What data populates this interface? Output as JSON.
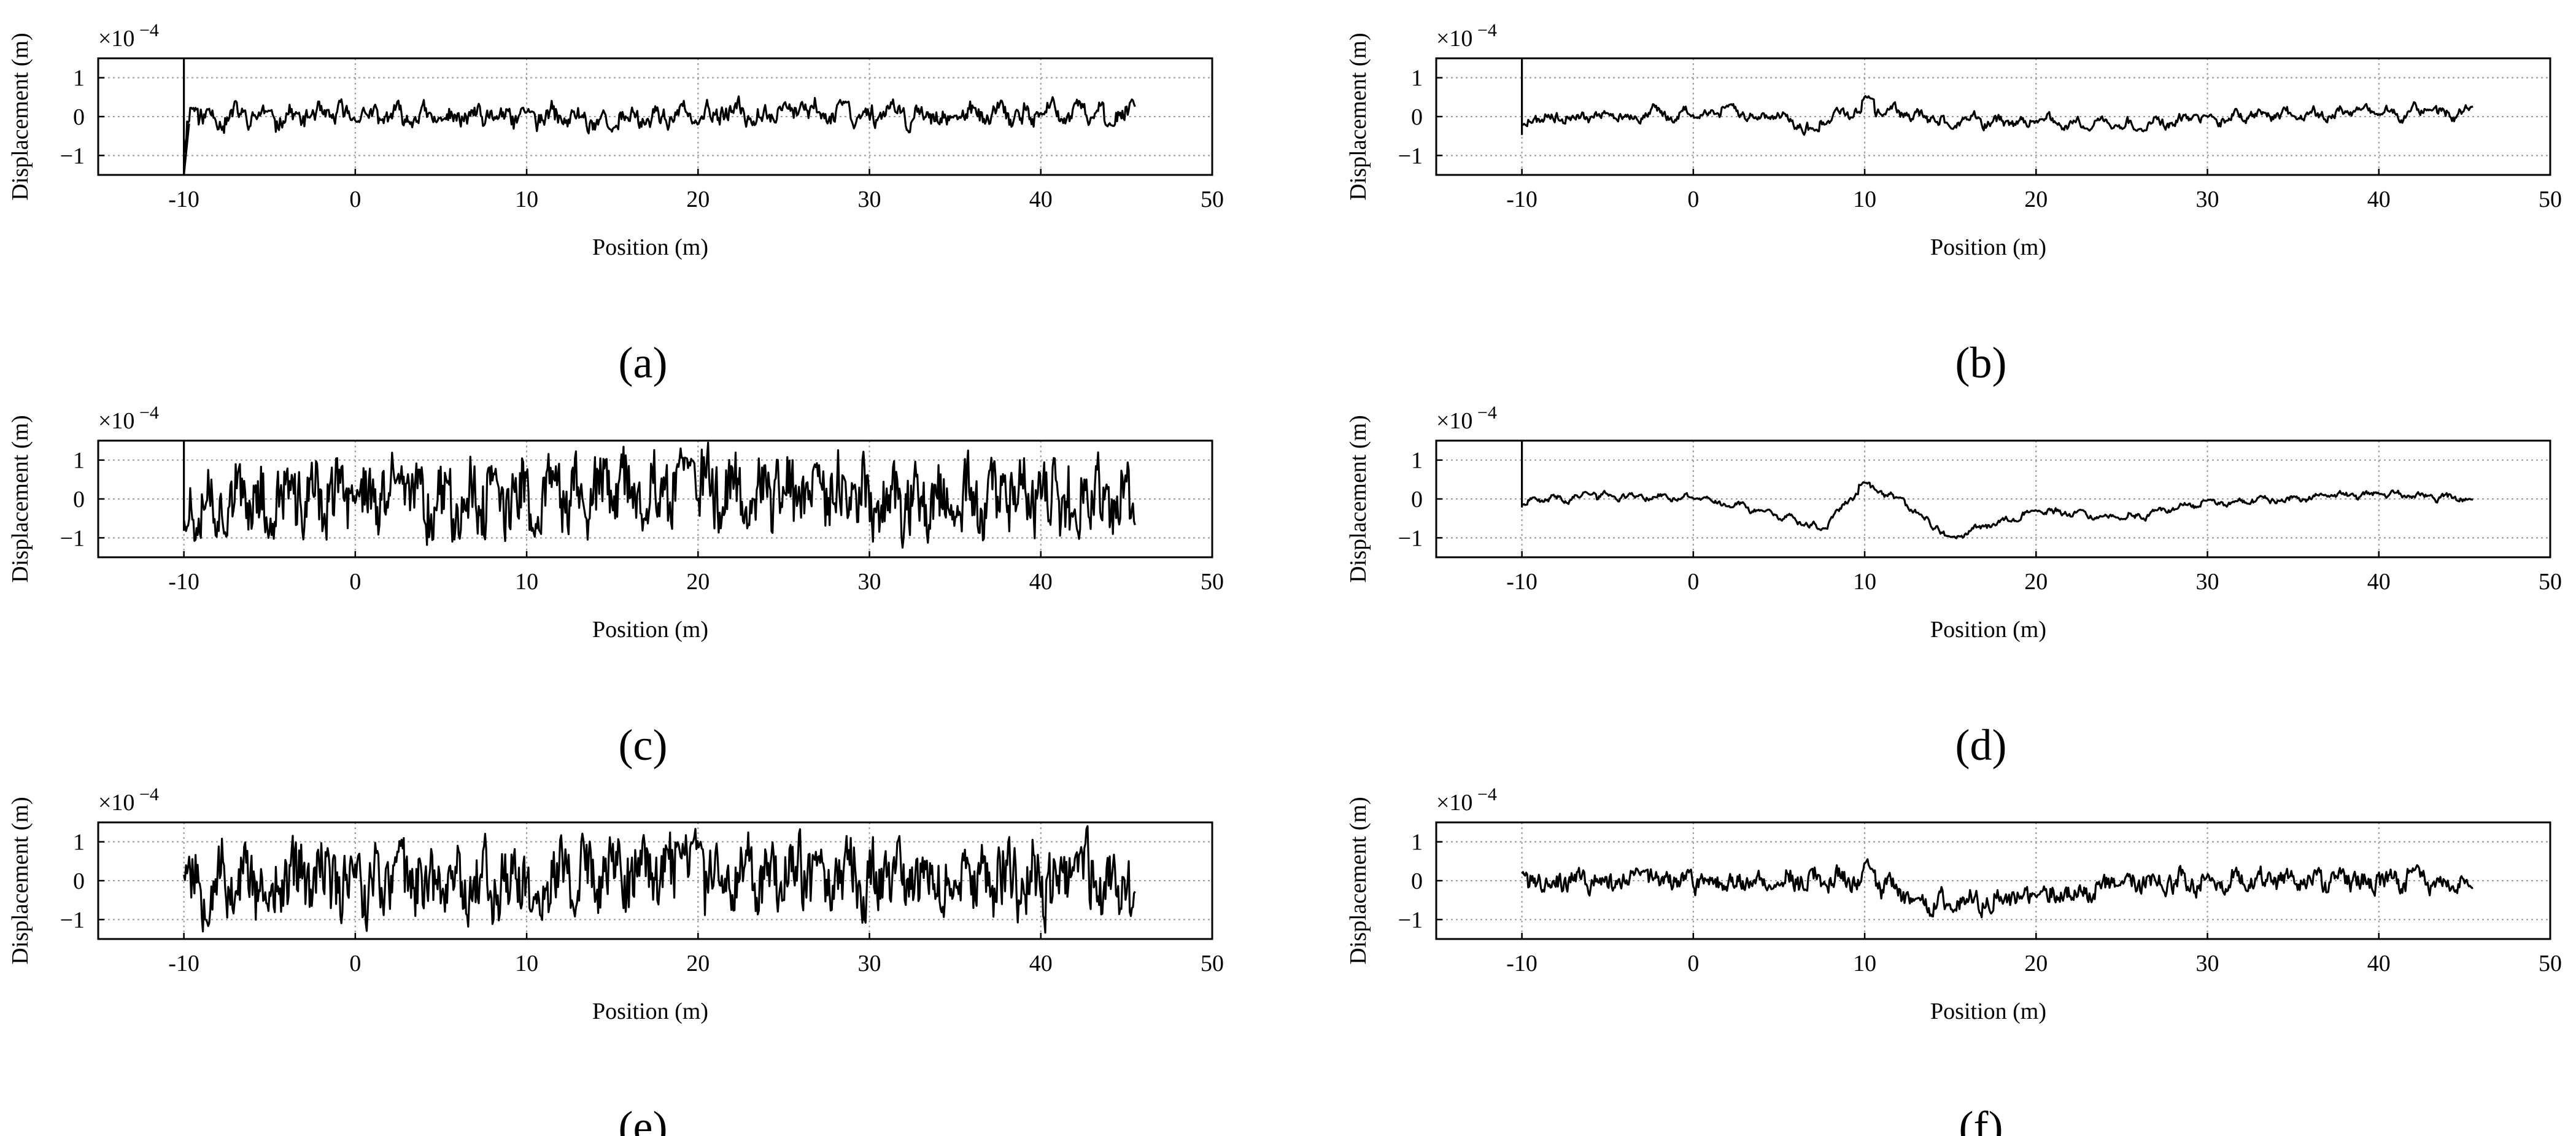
{
  "figure": {
    "panels_meta": [
      {
        "label": "(a)",
        "seed": 11,
        "smooth": 0.55,
        "amp": 0.3,
        "drift": [
          [
            -10,
            0
          ],
          [
            0,
            0
          ],
          [
            15,
            -0.05
          ],
          [
            25,
            0.15
          ],
          [
            35,
            0
          ],
          [
            45.5,
            0.1
          ]
        ],
        "spike": "down"
      },
      {
        "label": "(b)",
        "seed": 23,
        "smooth": 0.7,
        "amp": 0.22,
        "drift": [
          [
            -10,
            0
          ],
          [
            3,
            0.1
          ],
          [
            7,
            -0.25
          ],
          [
            10,
            0.25
          ],
          [
            15,
            -0.15
          ],
          [
            26,
            -0.2
          ],
          [
            32,
            0.05
          ],
          [
            45.5,
            0.1
          ]
        ],
        "spike": "down-small"
      },
      {
        "label": "(c)",
        "seed": 37,
        "smooth": 0.3,
        "amp": 0.75,
        "drift": [
          [
            -10,
            0
          ],
          [
            10,
            0
          ],
          [
            20,
            0.3
          ],
          [
            30,
            0
          ],
          [
            45.5,
            0
          ]
        ],
        "spike": "up"
      },
      {
        "label": "(d)",
        "seed": 41,
        "smooth": 0.7,
        "amp": 0.12,
        "drift": [
          [
            -10,
            -0.1
          ],
          [
            -6,
            0.1
          ],
          [
            0,
            0.05
          ],
          [
            3,
            -0.2
          ],
          [
            7.5,
            -0.75
          ],
          [
            10,
            0.3
          ],
          [
            12,
            0
          ],
          [
            15,
            -1.0
          ],
          [
            20,
            -0.3
          ],
          [
            25,
            -0.5
          ],
          [
            30,
            -0.1
          ],
          [
            40,
            0.1
          ],
          [
            45.5,
            0
          ]
        ],
        "spike": "up-thin"
      },
      {
        "label": "(e)",
        "seed": 53,
        "smooth": 0.3,
        "amp": 0.75,
        "drift": [
          [
            -10,
            0
          ],
          [
            10,
            0
          ],
          [
            20,
            0.35
          ],
          [
            30,
            0
          ],
          [
            45.5,
            0
          ]
        ],
        "spike": "none"
      },
      {
        "label": "(f)",
        "seed": 67,
        "smooth": 0.5,
        "amp": 0.28,
        "drift": [
          [
            -10,
            0
          ],
          [
            5,
            0
          ],
          [
            10,
            0.1
          ],
          [
            13,
            -0.6
          ],
          [
            17,
            -0.5
          ],
          [
            22,
            -0.3
          ],
          [
            25,
            0
          ],
          [
            45.5,
            0
          ]
        ],
        "spike": "none"
      }
    ]
  },
  "chart_data": [
    {
      "type": "line",
      "panel": "(a)",
      "xlabel": "Position (m)",
      "ylabel": "Displacement (m)",
      "y_scale_label": "×10⁻⁴",
      "xlim": [
        -15,
        50
      ],
      "ylim": [
        -1.5,
        1.5
      ],
      "xticks": [
        -10,
        0,
        10,
        20,
        30,
        40,
        50
      ],
      "yticks": [
        -1,
        0,
        1
      ],
      "grid": true,
      "series": [
        {
          "x": [
            -10,
            -9.5,
            -5,
            0,
            5,
            10,
            15,
            20,
            25,
            28.5,
            35,
            40,
            44,
            45.5
          ],
          "y": [
            -1.5,
            0.4,
            0.1,
            0.0,
            -0.1,
            0.2,
            -0.4,
            -0.2,
            0.3,
            0.5,
            0.0,
            0.1,
            -0.3,
            0.5
          ]
        }
      ]
    },
    {
      "type": "line",
      "panel": "(b)",
      "xlabel": "Position (m)",
      "ylabel": "Displacement (m)",
      "y_scale_label": "×10⁻⁴",
      "xlim": [
        -15,
        50
      ],
      "ylim": [
        -1.5,
        1.5
      ],
      "xticks": [
        -10,
        0,
        10,
        20,
        30,
        40,
        50
      ],
      "yticks": [
        -1,
        0,
        1
      ],
      "grid": true,
      "series": [
        {
          "x": [
            -10,
            -5,
            0,
            2,
            7,
            10.2,
            15,
            20,
            26,
            30,
            35,
            40,
            43,
            45.5
          ],
          "y": [
            -0.4,
            0.1,
            0.0,
            0.4,
            -0.5,
            0.6,
            -0.3,
            0.0,
            -0.4,
            0.0,
            0.0,
            0.1,
            0.3,
            0.2
          ]
        }
      ]
    },
    {
      "type": "line",
      "panel": "(c)",
      "xlabel": "Position (m)",
      "ylabel": "Displacement (m)",
      "y_scale_label": "×10⁻⁴",
      "xlim": [
        -15,
        50
      ],
      "ylim": [
        -1.5,
        1.5
      ],
      "xticks": [
        -10,
        0,
        10,
        20,
        30,
        40,
        50
      ],
      "yticks": [
        -1,
        0,
        1
      ],
      "grid": true,
      "series": [
        {
          "x": [
            -10,
            -5,
            0,
            2.5,
            8,
            10.5,
            19.5,
            27,
            35,
            42,
            45.5
          ],
          "y": [
            -0.8,
            -1.0,
            0.5,
            1.0,
            1.0,
            -0.9,
            1.2,
            1.0,
            -0.5,
            -1.2,
            -0.7
          ]
        }
      ]
    },
    {
      "type": "line",
      "panel": "(d)",
      "xlabel": "Position (m)",
      "ylabel": "Displacement (m)",
      "y_scale_label": "×10⁻⁴",
      "xlim": [
        -15,
        50
      ],
      "ylim": [
        -1.5,
        1.5
      ],
      "xticks": [
        -10,
        0,
        10,
        20,
        30,
        40,
        50
      ],
      "yticks": [
        -1,
        0,
        1
      ],
      "grid": true,
      "series": [
        {
          "x": [
            -10,
            -6,
            0,
            4,
            7.5,
            10,
            12,
            15,
            20,
            25,
            30,
            40,
            45.5
          ],
          "y": [
            -0.2,
            0.2,
            0.0,
            -0.3,
            -0.8,
            0.5,
            0.0,
            -1.0,
            -0.3,
            -0.5,
            0.0,
            0.2,
            0.0
          ]
        }
      ]
    },
    {
      "type": "line",
      "panel": "(e)",
      "xlabel": "Position (m)",
      "ylabel": "Displacement (m)",
      "y_scale_label": "×10⁻⁴",
      "xlim": [
        -15,
        50
      ],
      "ylim": [
        -1.5,
        1.5
      ],
      "xticks": [
        -10,
        0,
        10,
        20,
        30,
        40,
        50
      ],
      "yticks": [
        -1,
        0,
        1
      ],
      "grid": true,
      "series": [
        {
          "x": [
            -10,
            -5,
            0,
            2.5,
            10.5,
            19,
            20,
            27,
            35,
            42,
            45.5
          ],
          "y": [
            0.6,
            -1.0,
            0.6,
            1.0,
            -1.1,
            1.4,
            1.3,
            1.0,
            -0.5,
            0.8,
            -1.1
          ]
        }
      ]
    },
    {
      "type": "line",
      "panel": "(f)",
      "xlabel": "Position (m)",
      "ylabel": "Displacement (m)",
      "y_scale_label": "×10⁻⁴",
      "xlim": [
        -15,
        50
      ],
      "ylim": [
        -1.5,
        1.5
      ],
      "xticks": [
        -10,
        0,
        10,
        20,
        30,
        40,
        50
      ],
      "yticks": [
        -1,
        0,
        1
      ],
      "grid": true,
      "series": [
        {
          "x": [
            -10,
            -3,
            5,
            10.3,
            13,
            15,
            20,
            25,
            30,
            42,
            45.5
          ],
          "y": [
            0.3,
            0.4,
            -0.2,
            0.6,
            -0.5,
            -0.9,
            -0.3,
            0.0,
            0.1,
            0.4,
            -0.3
          ]
        }
      ]
    }
  ]
}
